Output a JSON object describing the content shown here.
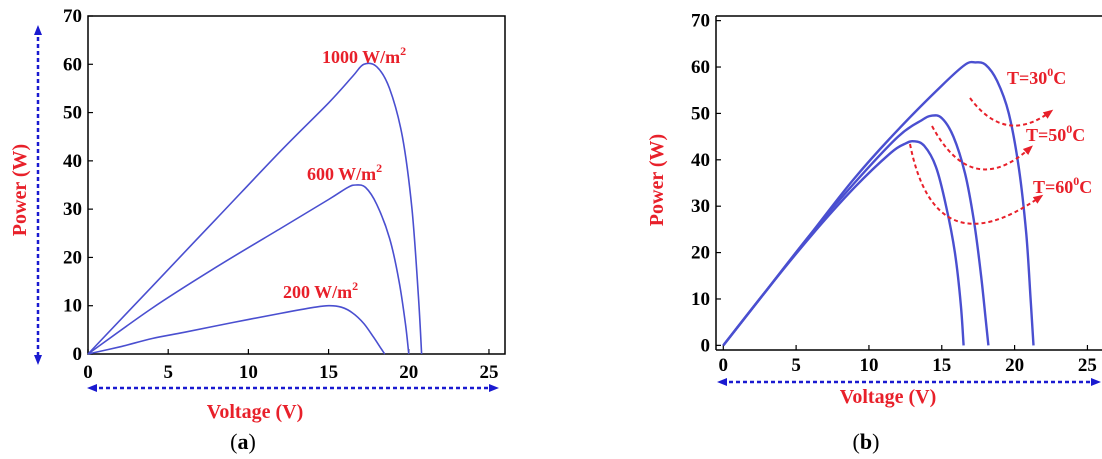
{
  "colors": {
    "curve": "#4a4fd0",
    "label": "#e8202a",
    "axis_arrow": "#1a1ad0",
    "frame": "#000000"
  },
  "chart_data": [
    {
      "type": "line",
      "caption_letter": "a",
      "xlabel": "Voltage (V)",
      "ylabel": "Power (W)",
      "xlim": [
        0,
        26
      ],
      "ylim": [
        0,
        70
      ],
      "xticks": [
        0,
        5,
        10,
        15,
        20,
        25
      ],
      "yticks": [
        0,
        10,
        20,
        30,
        40,
        50,
        60,
        70
      ],
      "series": [
        {
          "name": "1000 W/m",
          "x": [
            0,
            4,
            8,
            12,
            15,
            16.5,
            17.2,
            18,
            18.8,
            19.6,
            20.2,
            20.6,
            20.8
          ],
          "y": [
            0,
            14,
            28,
            42,
            52,
            57.5,
            60,
            59.5,
            55,
            45,
            30,
            12,
            0
          ]
        },
        {
          "name": "600 W/m",
          "x": [
            0,
            4,
            8,
            12,
            15,
            16.2,
            16.7,
            17.3,
            18,
            18.8,
            19.4,
            19.8,
            20
          ],
          "y": [
            0,
            9.5,
            18,
            26,
            32,
            34.5,
            35,
            34.5,
            31,
            24,
            15,
            6,
            0
          ]
        },
        {
          "name": "200 W/m",
          "x": [
            0,
            2,
            4,
            6,
            9,
            12,
            14,
            15,
            15.8,
            16.5,
            17.2,
            17.8,
            18.2,
            18.5
          ],
          "y": [
            0,
            1.5,
            3.2,
            4.5,
            6.5,
            8.4,
            9.6,
            10,
            9.7,
            8.5,
            6.3,
            3.5,
            1.5,
            0
          ]
        }
      ],
      "annotations": [
        {
          "text": "1000 W/m",
          "sup": "2"
        },
        {
          "text": "600 W/m",
          "sup": "2"
        },
        {
          "text": "200 W/m",
          "sup": "2"
        }
      ]
    },
    {
      "type": "line",
      "caption_letter": "b",
      "xlabel": "Voltage (V)",
      "ylabel": "Power (W)",
      "xlim": [
        -0.5,
        26
      ],
      "ylim": [
        -1,
        71
      ],
      "xticks": [
        0,
        5,
        10,
        15,
        20,
        25
      ],
      "yticks": [
        0,
        10,
        20,
        30,
        40,
        50,
        60,
        70
      ],
      "series": [
        {
          "name": "T=30C",
          "x": [
            0,
            3,
            6,
            9,
            12,
            15,
            16.6,
            17.3,
            18,
            18.8,
            19.6,
            20.3,
            20.8,
            21.1,
            21.3
          ],
          "y": [
            0,
            12,
            24,
            36,
            46.5,
            56,
            60.5,
            61,
            60.5,
            57,
            50,
            38,
            24,
            10,
            0
          ]
        },
        {
          "name": "T=50C",
          "x": [
            0,
            3,
            6,
            9,
            12,
            13.6,
            14.3,
            15,
            15.8,
            16.6,
            17.2,
            17.7,
            18,
            18.2
          ],
          "y": [
            0,
            12,
            24,
            35,
            45,
            48.5,
            49.5,
            49,
            45,
            37,
            27,
            15,
            6,
            0
          ]
        },
        {
          "name": "T=60C",
          "x": [
            0,
            3,
            6,
            9,
            11.5,
            12.5,
            13.1,
            13.8,
            14.6,
            15.3,
            15.9,
            16.3,
            16.5
          ],
          "y": [
            0,
            12,
            23.5,
            34,
            41.5,
            43.5,
            44,
            43,
            38.5,
            30,
            20,
            9,
            0
          ]
        }
      ],
      "annotations": [
        {
          "text": "T=30",
          "sup": "0",
          "tail": "C"
        },
        {
          "text": "T=50",
          "sup": "0",
          "tail": "C"
        },
        {
          "text": "T=60",
          "sup": "0",
          "tail": "C"
        }
      ]
    }
  ]
}
